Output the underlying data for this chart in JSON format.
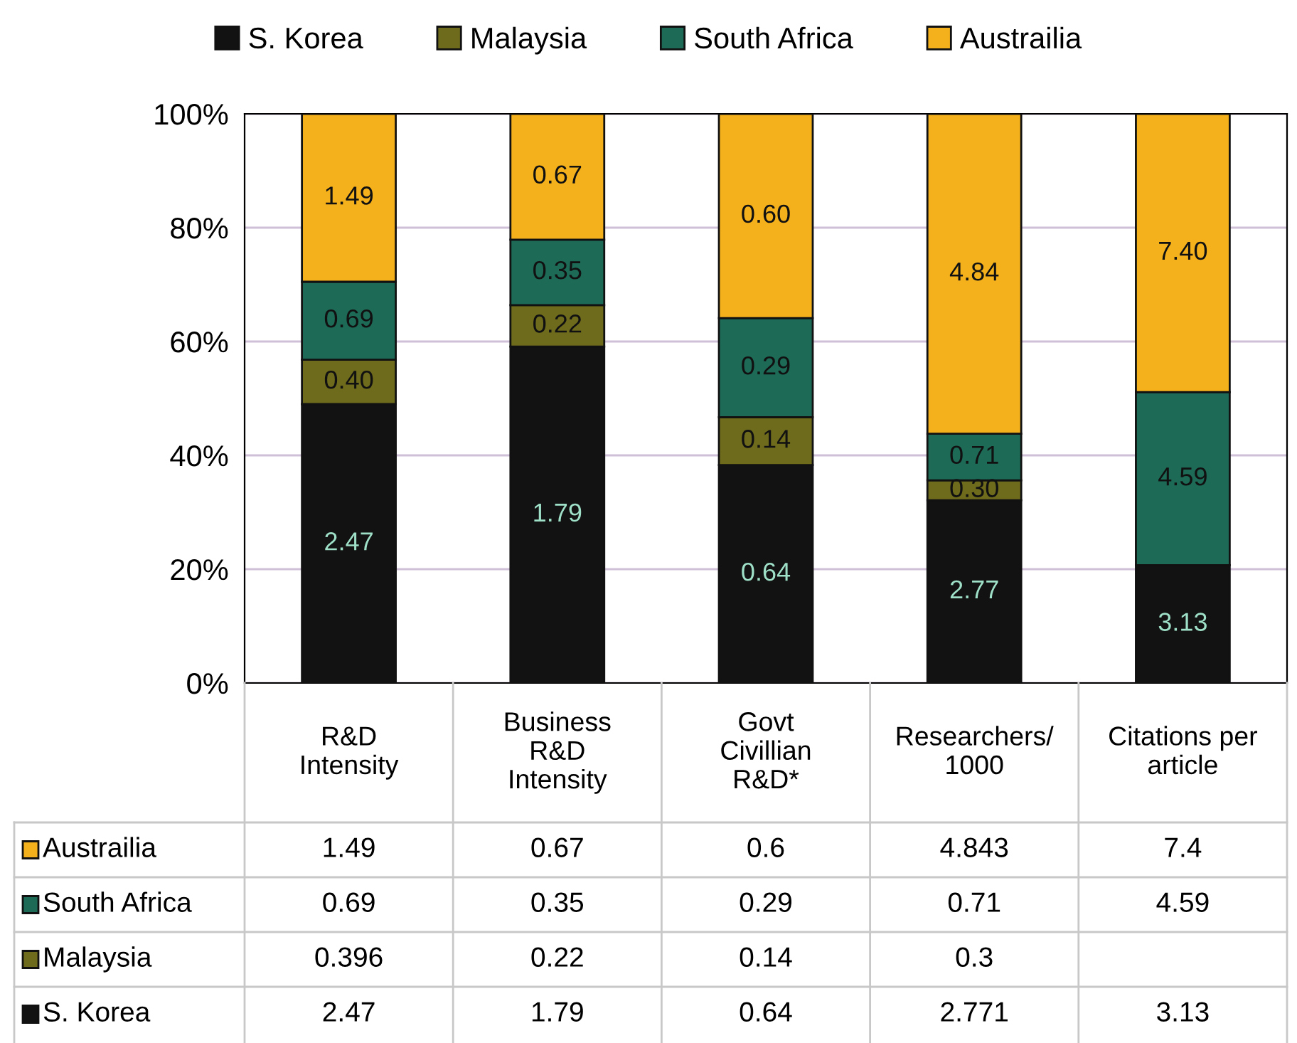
{
  "chart_data": {
    "type": "bar",
    "stacked": true,
    "categories": [
      "R&D\nIntensity",
      "Business\nR&D\nIntensity",
      "Govt\nCivillian\nR&D*",
      "Researchers/\n1000",
      "Citations per\narticle"
    ],
    "series": [
      {
        "name": "S. Korea",
        "color": "#121212",
        "values": [
          49.0,
          59.1,
          38.3,
          32.1,
          20.7
        ]
      },
      {
        "name": "Malaysia",
        "color": "#6e6b1c",
        "values": [
          7.8,
          7.3,
          8.4,
          3.5,
          null
        ]
      },
      {
        "name": "South Africa",
        "color": "#1d6a57",
        "values": [
          13.7,
          11.5,
          17.4,
          8.2,
          30.4
        ]
      },
      {
        "name": "Austrailia",
        "color": "#f5b11c",
        "values": [
          29.5,
          22.1,
          35.9,
          56.2,
          48.9
        ]
      }
    ],
    "ylim": [
      0,
      100
    ],
    "yticks": [
      {
        "value": 0,
        "label": "0%"
      },
      {
        "value": 20,
        "label": "20%"
      },
      {
        "value": 40,
        "label": "40%"
      },
      {
        "value": 60,
        "label": "60%"
      },
      {
        "value": 80,
        "label": "80%"
      },
      {
        "value": 100,
        "label": "100%"
      }
    ],
    "grid": "y",
    "legend": "top",
    "annotations": [
      "2.47",
      "1.79",
      "0.64",
      "2.77",
      "3.13",
      "0.40",
      "0.22",
      "0.14",
      "0.30",
      "0.69",
      "0.35",
      "0.29",
      "0.71",
      "4.59",
      "1.49",
      "0.67",
      "0.60",
      "4.84",
      "7.40",
      "1.49",
      "0.67",
      "0.6",
      "4.843",
      "7.4",
      "0.69",
      "0.35",
      "0.29",
      "0.71",
      "4.59",
      "0.396",
      "0.22",
      "0.14",
      "0.3",
      "2.47",
      "1.79",
      "0.64",
      "2.771",
      "3.13"
    ]
  }
}
